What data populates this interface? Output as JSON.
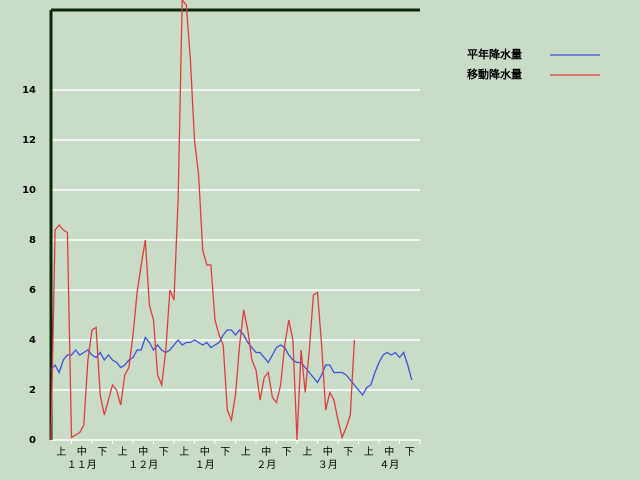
{
  "chart_data": {
    "type": "line",
    "categories": [
      "上",
      "中",
      "下",
      "上",
      "中",
      "下",
      "上",
      "中",
      "下",
      "上",
      "中",
      "下",
      "上",
      "中",
      "下",
      "上",
      "中",
      "下"
    ],
    "months": [
      "１１月",
      "１２月",
      "１月",
      "２月",
      "３月",
      "４月"
    ],
    "x": [
      0,
      0.2,
      0.4,
      0.6,
      0.8,
      1,
      1.2,
      1.4,
      1.6,
      1.8,
      2,
      2.2,
      2.4,
      2.6,
      2.8,
      3,
      3.2,
      3.4,
      3.6,
      3.8,
      4,
      4.2,
      4.4,
      4.6,
      4.8,
      5,
      5.2,
      5.4,
      5.6,
      5.8,
      6,
      6.2,
      6.4,
      6.6,
      6.8,
      7,
      7.2,
      7.4,
      7.6,
      7.8,
      8,
      8.2,
      8.4,
      8.6,
      8.8,
      9,
      9.2,
      9.4,
      9.6,
      9.8,
      10,
      10.2,
      10.4,
      10.6,
      10.8,
      11,
      11.2,
      11.4,
      11.6,
      11.8,
      12,
      12.2,
      12.4,
      12.6,
      12.8,
      13,
      13.2,
      13.4,
      13.6,
      13.8,
      14,
      14.2,
      14.4,
      14.6,
      14.8,
      15,
      15.2,
      15.4,
      15.6,
      15.8,
      16,
      16.2,
      16.4,
      16.6,
      16.8,
      17,
      17.2,
      17.4,
      17.6
    ],
    "xlim": [
      0,
      18
    ],
    "ylim": [
      0,
      17.2
    ],
    "yticks": [
      0,
      2,
      4,
      6,
      8,
      10,
      12,
      14
    ],
    "grid": true,
    "legend": "right",
    "series": [
      {
        "name": "平年降水量",
        "color": "#3c50dc",
        "values": [
          2.8,
          3.0,
          2.7,
          3.2,
          3.4,
          3.4,
          3.6,
          3.4,
          3.5,
          3.6,
          3.4,
          3.3,
          3.5,
          3.2,
          3.4,
          3.2,
          3.1,
          2.9,
          3.0,
          3.2,
          3.3,
          3.6,
          3.6,
          4.1,
          3.9,
          3.6,
          3.8,
          3.6,
          3.5,
          3.6,
          3.8,
          4.0,
          3.8,
          3.9,
          3.9,
          4.0,
          3.9,
          3.8,
          3.9,
          3.7,
          3.8,
          3.9,
          4.2,
          4.4,
          4.4,
          4.2,
          4.4,
          4.2,
          3.9,
          3.7,
          3.5,
          3.5,
          3.3,
          3.1,
          3.4,
          3.7,
          3.8,
          3.7,
          3.4,
          3.2,
          3.1,
          3.1,
          2.9,
          2.7,
          2.5,
          2.3,
          2.6,
          3.0,
          3.0,
          2.7,
          2.7,
          2.7,
          2.6,
          2.4,
          2.2,
          2.0,
          1.8,
          2.1,
          2.2,
          2.7,
          3.1,
          3.4,
          3.5,
          3.4,
          3.5,
          3.3,
          3.5,
          3.0,
          2.4
        ]
      },
      {
        "name": "移動降水量",
        "color": "#e03c3c",
        "values": [
          0,
          8.4,
          8.6,
          8.4,
          8.3,
          0.1,
          0.2,
          0.3,
          0.6,
          3.2,
          4.4,
          4.5,
          1.8,
          1.0,
          1.6,
          2.2,
          2.0,
          1.4,
          2.6,
          2.9,
          4.2,
          5.9,
          7.0,
          8.0,
          5.4,
          4.8,
          2.6,
          2.2,
          3.6,
          6.0,
          5.6,
          9.6,
          17.6,
          17.4,
          15.2,
          12.0,
          10.6,
          7.6,
          7.0,
          7.0,
          4.8,
          4.2,
          3.8,
          1.2,
          0.8,
          1.8,
          3.8,
          5.2,
          4.4,
          3.2,
          2.8,
          1.6,
          2.5,
          2.7,
          1.7,
          1.5,
          2.2,
          3.8,
          4.8,
          4.0,
          0,
          3.6,
          1.9,
          3.6,
          5.8,
          5.9,
          3.8,
          1.2,
          1.9,
          1.6,
          0.8,
          0.1,
          0.5,
          1.0,
          4.0,
          null,
          null,
          null,
          null,
          null,
          null,
          null,
          null,
          null,
          null,
          null,
          null,
          null,
          null
        ]
      }
    ]
  }
}
